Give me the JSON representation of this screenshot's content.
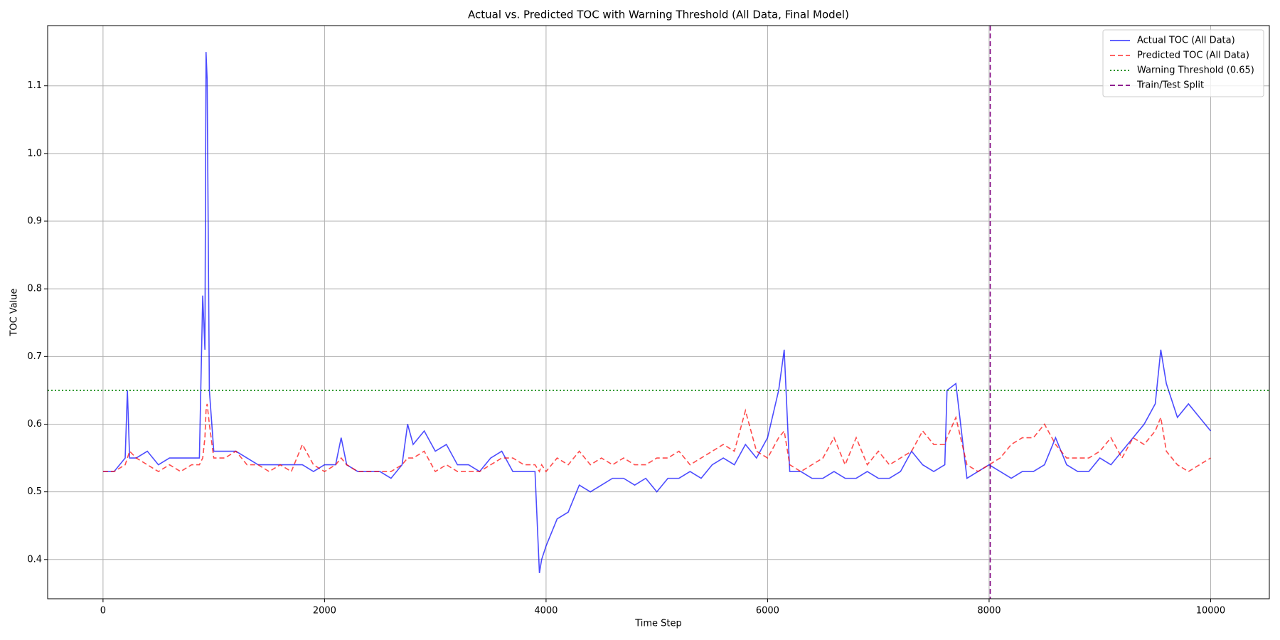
{
  "chart_data": {
    "type": "line",
    "title": "Actual vs. Predicted TOC with Warning Threshold (All Data, Final Model)",
    "xlabel": "Time Step",
    "ylabel": "TOC Value",
    "x": [
      0,
      100,
      200,
      220,
      240,
      300,
      400,
      500,
      600,
      700,
      800,
      870,
      900,
      920,
      930,
      940,
      960,
      1000,
      1100,
      1200,
      1300,
      1400,
      1500,
      1600,
      1700,
      1800,
      1900,
      2000,
      2100,
      2150,
      2200,
      2300,
      2400,
      2500,
      2600,
      2700,
      2750,
      2800,
      2900,
      3000,
      3100,
      3200,
      3300,
      3400,
      3500,
      3600,
      3700,
      3800,
      3900,
      3940,
      3960,
      4000,
      4100,
      4200,
      4300,
      4400,
      4500,
      4600,
      4700,
      4800,
      4900,
      5000,
      5100,
      5200,
      5300,
      5400,
      5500,
      5600,
      5700,
      5800,
      5900,
      6000,
      6100,
      6150,
      6200,
      6300,
      6400,
      6500,
      6600,
      6700,
      6800,
      6900,
      7000,
      7100,
      7200,
      7300,
      7400,
      7500,
      7600,
      7620,
      7700,
      7800,
      7900,
      8000,
      8100,
      8200,
      8300,
      8400,
      8500,
      8600,
      8700,
      8800,
      8900,
      9000,
      9100,
      9200,
      9300,
      9400,
      9500,
      9550,
      9600,
      9700,
      9800,
      9900,
      10000
    ],
    "series": [
      {
        "name": "Actual TOC (All Data)",
        "color": "#0000ff",
        "dash": "solid",
        "values": [
          0.53,
          0.53,
          0.55,
          0.65,
          0.55,
          0.55,
          0.56,
          0.54,
          0.55,
          0.55,
          0.55,
          0.55,
          0.79,
          0.71,
          1.15,
          1.11,
          0.65,
          0.56,
          0.56,
          0.56,
          0.55,
          0.54,
          0.54,
          0.54,
          0.54,
          0.54,
          0.53,
          0.54,
          0.54,
          0.58,
          0.54,
          0.53,
          0.53,
          0.53,
          0.52,
          0.54,
          0.6,
          0.57,
          0.59,
          0.56,
          0.57,
          0.54,
          0.54,
          0.53,
          0.55,
          0.56,
          0.53,
          0.53,
          0.53,
          0.38,
          0.4,
          0.42,
          0.46,
          0.47,
          0.51,
          0.5,
          0.51,
          0.52,
          0.52,
          0.51,
          0.52,
          0.5,
          0.52,
          0.52,
          0.53,
          0.52,
          0.54,
          0.55,
          0.54,
          0.57,
          0.55,
          0.58,
          0.65,
          0.71,
          0.53,
          0.53,
          0.52,
          0.52,
          0.53,
          0.52,
          0.52,
          0.53,
          0.52,
          0.52,
          0.53,
          0.56,
          0.54,
          0.53,
          0.54,
          0.65,
          0.66,
          0.52,
          0.53,
          0.54,
          0.53,
          0.52,
          0.53,
          0.53,
          0.54,
          0.58,
          0.54,
          0.53,
          0.53,
          0.55,
          0.54,
          0.56,
          0.58,
          0.6,
          0.63,
          0.71,
          0.66,
          0.61,
          0.63,
          0.61,
          0.59
        ]
      },
      {
        "name": "Predicted TOC (All Data)",
        "color": "#ff0000",
        "dash": "dashed",
        "values": [
          0.53,
          0.53,
          0.54,
          0.55,
          0.56,
          0.55,
          0.54,
          0.53,
          0.54,
          0.53,
          0.54,
          0.54,
          0.55,
          0.58,
          0.62,
          0.63,
          0.6,
          0.55,
          0.55,
          0.56,
          0.54,
          0.54,
          0.53,
          0.54,
          0.53,
          0.57,
          0.54,
          0.53,
          0.54,
          0.55,
          0.54,
          0.53,
          0.53,
          0.53,
          0.53,
          0.54,
          0.55,
          0.55,
          0.56,
          0.53,
          0.54,
          0.53,
          0.53,
          0.53,
          0.54,
          0.55,
          0.55,
          0.54,
          0.54,
          0.53,
          0.54,
          0.53,
          0.55,
          0.54,
          0.56,
          0.54,
          0.55,
          0.54,
          0.55,
          0.54,
          0.54,
          0.55,
          0.55,
          0.56,
          0.54,
          0.55,
          0.56,
          0.57,
          0.56,
          0.62,
          0.56,
          0.55,
          0.58,
          0.59,
          0.54,
          0.53,
          0.54,
          0.55,
          0.58,
          0.54,
          0.58,
          0.54,
          0.56,
          0.54,
          0.55,
          0.56,
          0.59,
          0.57,
          0.57,
          0.58,
          0.61,
          0.54,
          0.53,
          0.54,
          0.55,
          0.57,
          0.58,
          0.58,
          0.6,
          0.57,
          0.55,
          0.55,
          0.55,
          0.56,
          0.58,
          0.55,
          0.58,
          0.57,
          0.59,
          0.61,
          0.56,
          0.54,
          0.53,
          0.54,
          0.55
        ]
      }
    ],
    "hlines": [
      {
        "name": "Warning Threshold (0.65)",
        "value": 0.65,
        "color": "#008000",
        "dash": "dotted"
      }
    ],
    "vlines": [
      {
        "name": "Train/Test Split",
        "value": 8010,
        "color": "#800080",
        "dash": "dashed"
      }
    ],
    "xlim": [
      -500,
      10530
    ],
    "ylim": [
      0.342,
      1.189
    ],
    "xticks": [
      0,
      2000,
      4000,
      6000,
      8000,
      10000
    ],
    "yticks": [
      0.4,
      0.5,
      0.6,
      0.7,
      0.8,
      0.9,
      {
        "value": 1,
        "label": "1.0"
      },
      1.1
    ],
    "grid": true,
    "legend": "upper-right"
  }
}
